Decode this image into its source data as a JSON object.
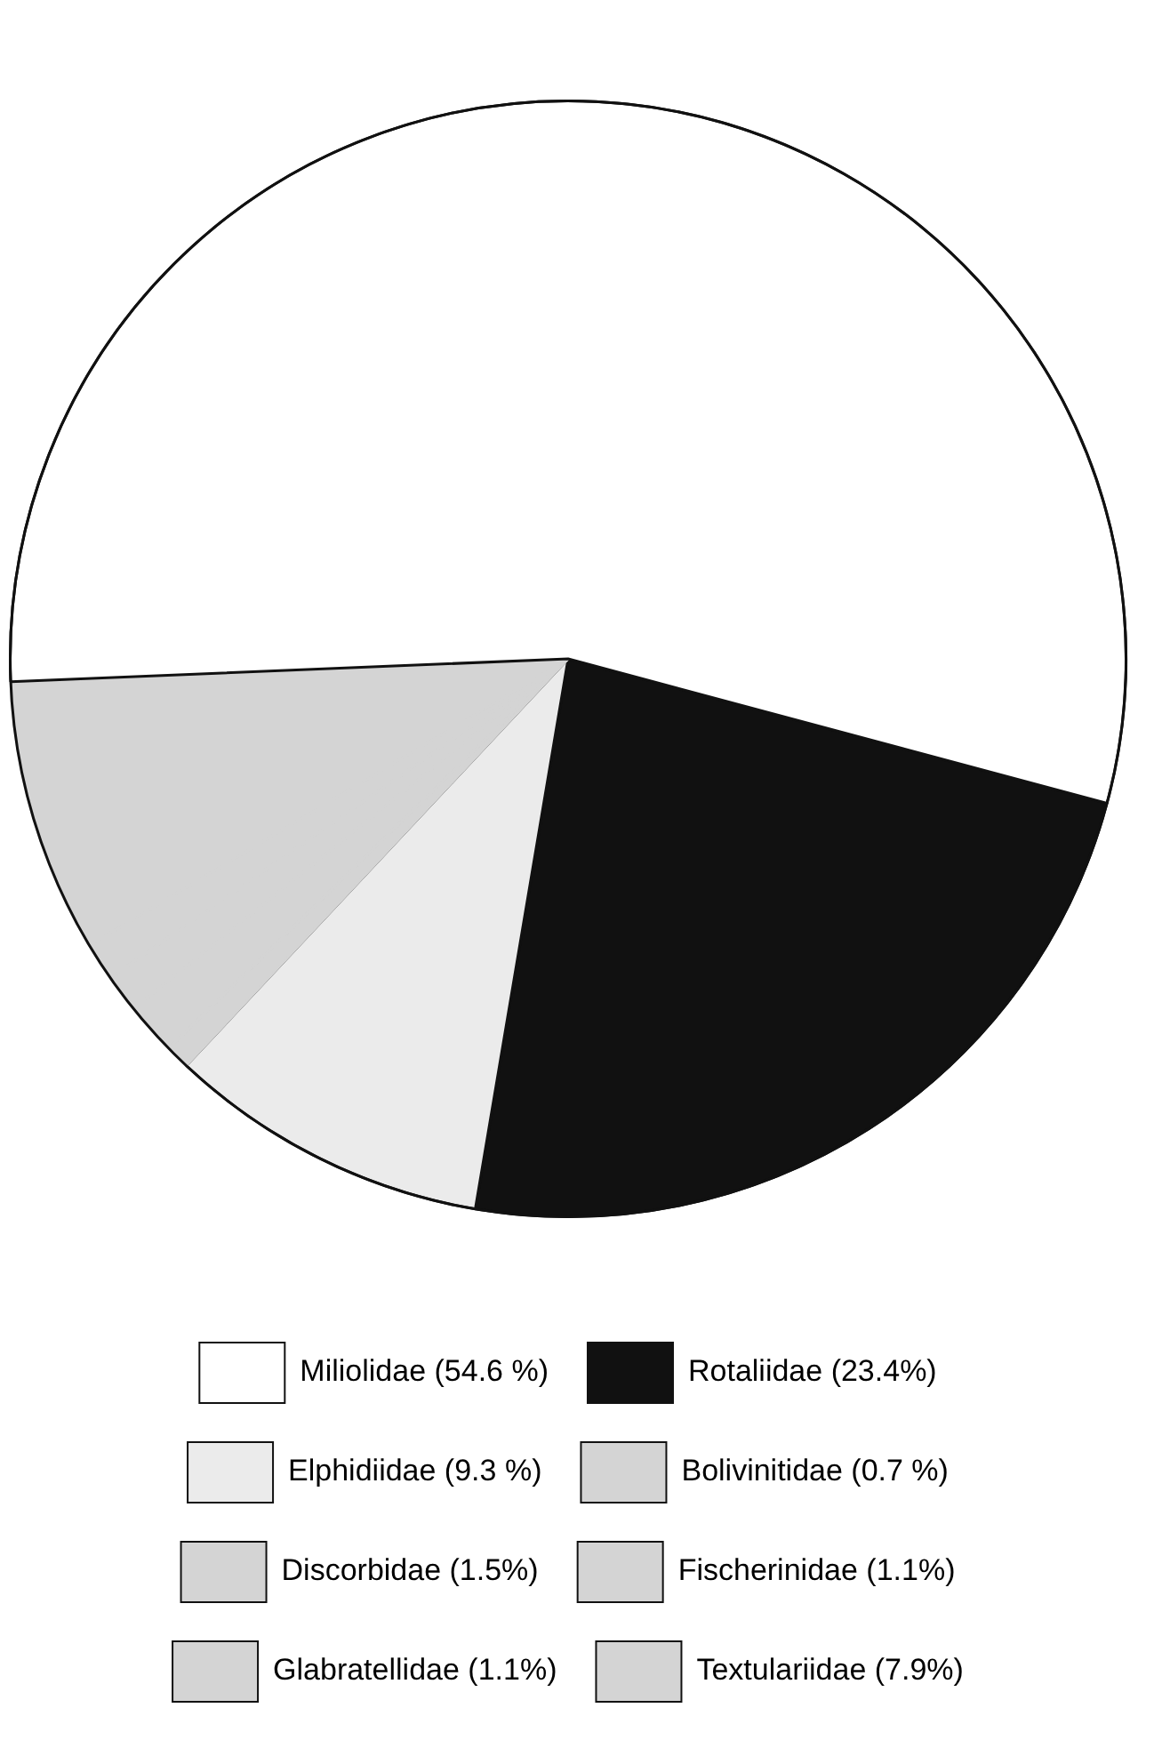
{
  "chart_data": {
    "type": "pie",
    "categories": [
      "Rotaliidae",
      "Elphidiidae",
      "Bolivinitidae",
      "Discorbidae",
      "Fischerinidae",
      "Glabratellidae",
      "Textulariidae",
      "Miliolidae"
    ],
    "values": [
      23.4,
      9.3,
      0.7,
      1.5,
      1.1,
      1.1,
      7.9,
      54.6
    ],
    "value_labels": [
      "(23.4%)",
      "(9.3 %)",
      "(0.7 %)",
      "(1.5%)",
      "(1.1%)",
      "(1.1%)",
      "(7.9%)",
      "(54.6 %)"
    ],
    "colors": [
      "#111111",
      "#ebebeb",
      "#d4d4d4",
      "#d4d4d4",
      "#d4d4d4",
      "#d4d4d4",
      "#d4d4d4",
      "#ffffff"
    ],
    "legend": "bottom"
  }
}
